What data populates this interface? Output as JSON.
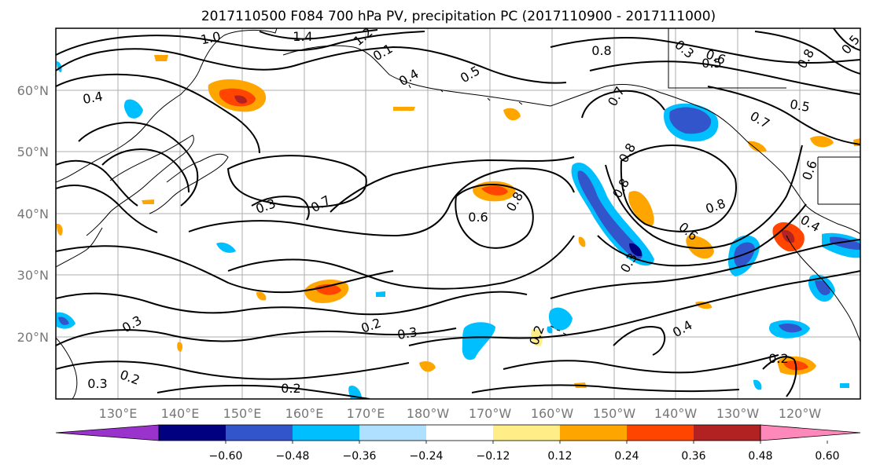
{
  "title": "2017110500 F084 700 hPa PV, precipitation PC (2017110900 - 2017111000)",
  "map": {
    "lon_labels": [
      "130°E",
      "140°E",
      "150°E",
      "160°E",
      "170°E",
      "180°W",
      "170°W",
      "160°W",
      "150°W",
      "140°W",
      "130°W",
      "120°W"
    ],
    "lat_labels": [
      "60°N",
      "50°N",
      "40°N",
      "30°N",
      "20°N"
    ],
    "contour_labels": [
      "1.0",
      "1.4",
      "1.2",
      "0.1",
      "0.4",
      "0.5",
      "0.8",
      "0.7",
      "0.3",
      "0.6",
      "0.8",
      "0.5",
      "0.5",
      "0.6",
      "0.5",
      "0.7",
      "0.8",
      "0.8",
      "0.3",
      "0.3",
      "0.7",
      "0.6",
      "0.8",
      "0.6",
      "0.8",
      "0.4",
      "0.3",
      "0.2",
      "0.3",
      "0.2",
      "0.2",
      "0.4",
      "0.4",
      "0.2",
      "0.3",
      "0.2",
      "0.2"
    ]
  },
  "colorbar": {
    "colors": [
      "#9933cc",
      "#000080",
      "#3355cc",
      "#00bfff",
      "#b0e0ff",
      "#ffffff",
      "#ffee88",
      "#ffa500",
      "#ff4500",
      "#b22222",
      "#ff88bb"
    ],
    "tick_labels": [
      "−0.60",
      "−0.48",
      "−0.36",
      "−0.24",
      "−0.12",
      "0.12",
      "0.24",
      "0.36",
      "0.48",
      "0.60"
    ]
  }
}
